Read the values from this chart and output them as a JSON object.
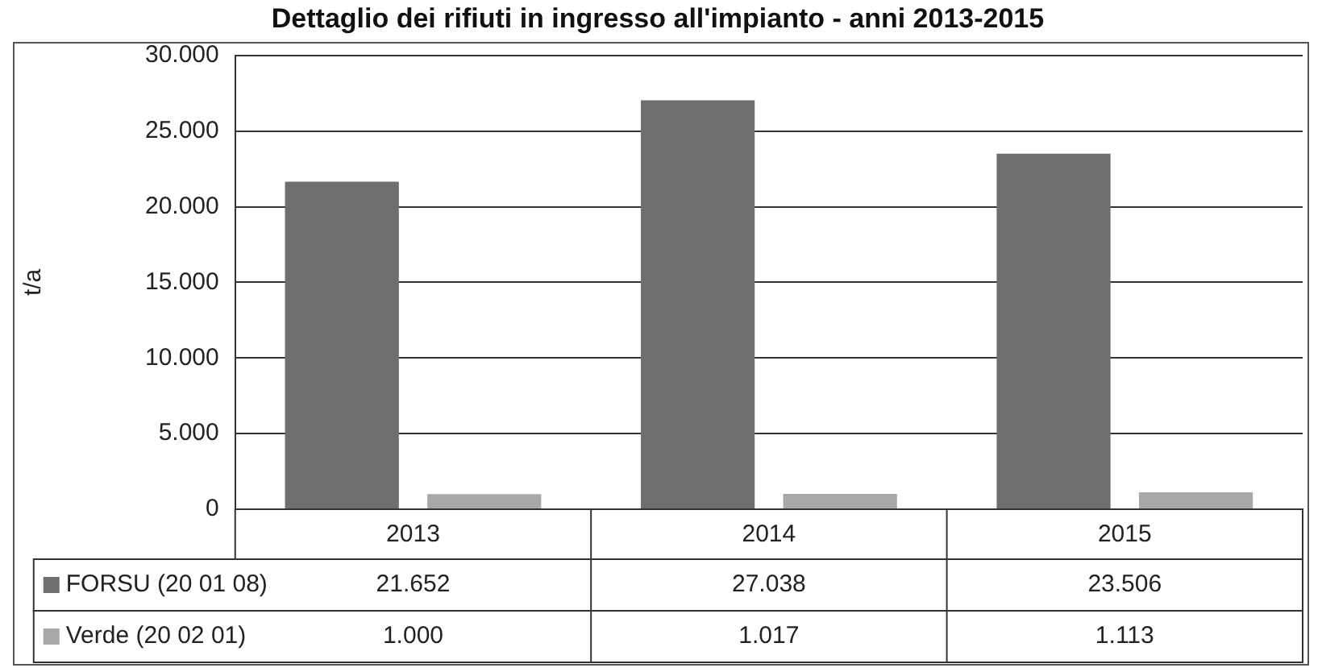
{
  "chart_data": {
    "type": "bar",
    "title": "Dettaglio dei rifiuti in ingresso all'impianto - anni 2013-2015",
    "ylabel": "t/a",
    "categories": [
      "2013",
      "2014",
      "2015"
    ],
    "series": [
      {
        "name": "FORSU (20 01 08)",
        "color": "#6e6e6e",
        "values": [
          21652,
          27038,
          23506
        ],
        "value_labels": [
          "21.652",
          "27.038",
          "23.506"
        ]
      },
      {
        "name": "Verde (20 02 01)",
        "color": "#a8a8a8",
        "values": [
          1000,
          1017,
          1113
        ],
        "value_labels": [
          "1.000",
          "1.017",
          "1.113"
        ]
      }
    ],
    "ylim": [
      0,
      30000
    ],
    "yticks": [
      {
        "value": 0,
        "label": "0"
      },
      {
        "value": 5000,
        "label": "5.000"
      },
      {
        "value": 10000,
        "label": "10.000"
      },
      {
        "value": 15000,
        "label": "15.000"
      },
      {
        "value": 20000,
        "label": "20.000"
      },
      {
        "value": 25000,
        "label": "25.000"
      },
      {
        "value": 30000,
        "label": "30.000"
      }
    ],
    "grid": "y",
    "legend": "bottom"
  }
}
